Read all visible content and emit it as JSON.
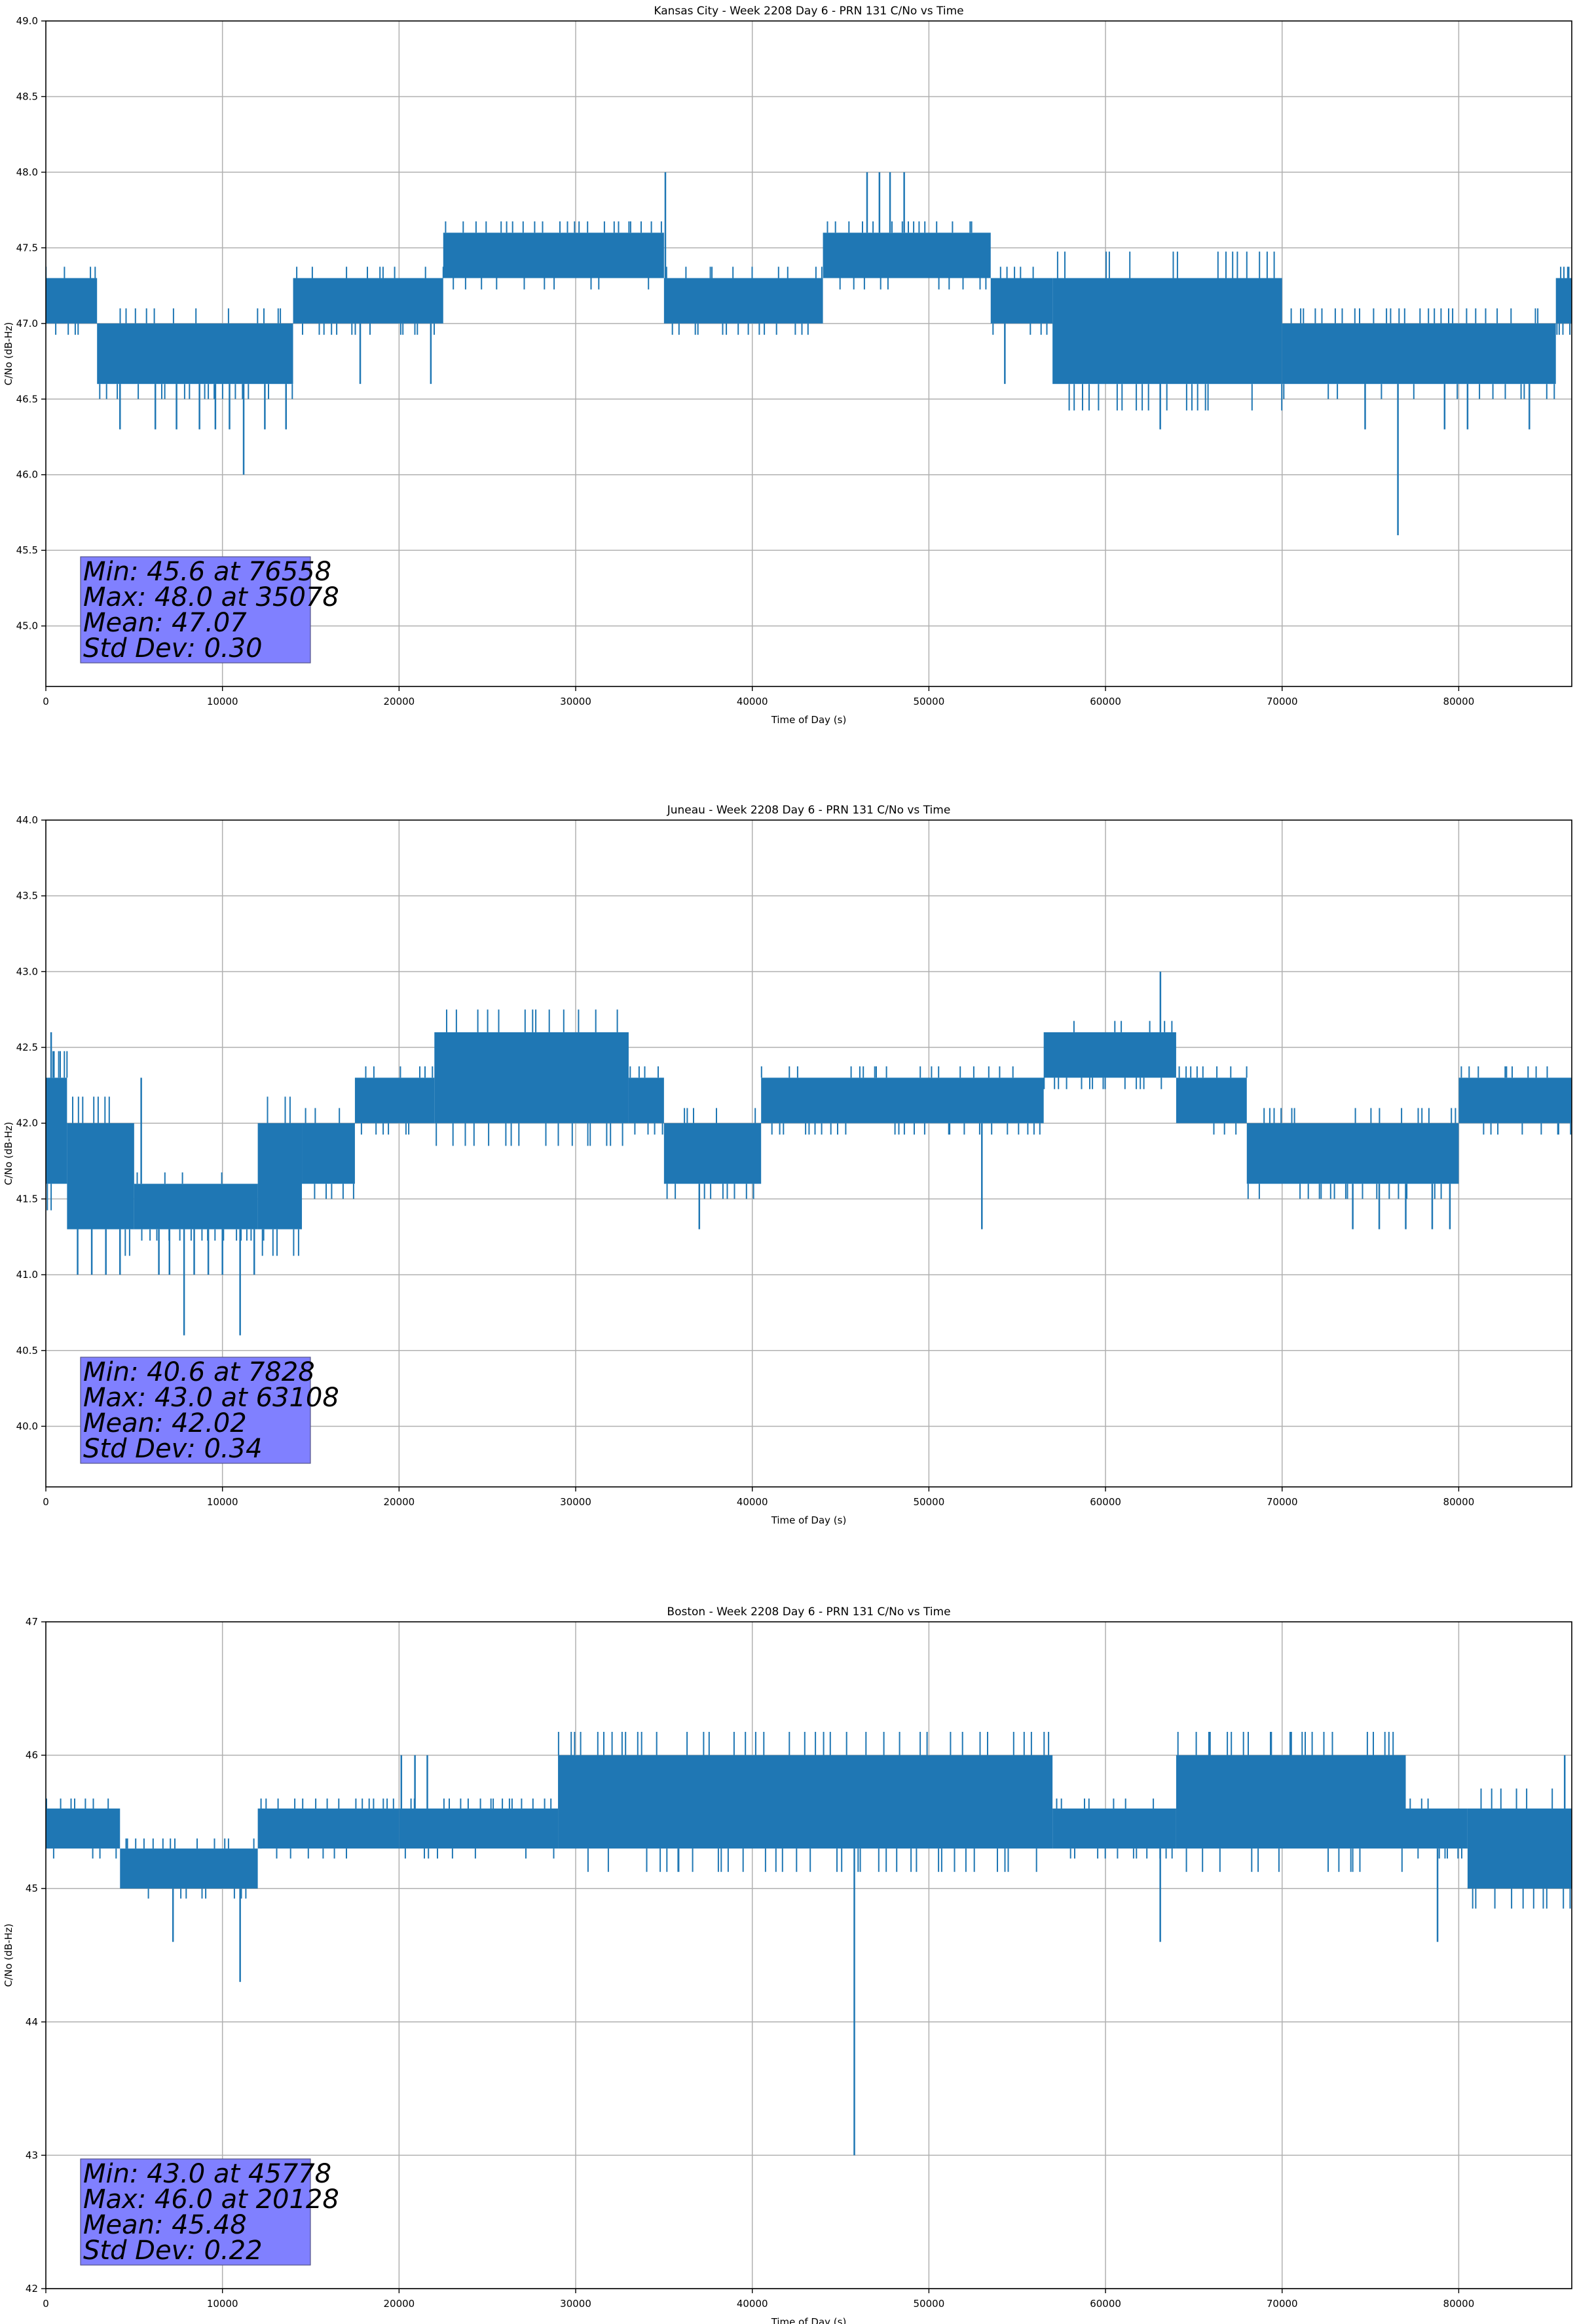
{
  "chart_data": [
    {
      "type": "line",
      "title": "Kansas City - Week 2208 Day 6 - PRN 131 C/No vs Time",
      "xlabel": "Time of Day (s)",
      "ylabel": "C/No (dB-Hz)",
      "xlim": [
        0,
        86400
      ],
      "ylim": [
        44.6,
        49.0
      ],
      "xticks": [
        0,
        10000,
        20000,
        30000,
        40000,
        50000,
        60000,
        70000,
        80000
      ],
      "yticks": [
        45.0,
        45.5,
        46.0,
        46.5,
        47.0,
        47.5,
        48.0,
        48.5,
        49.0
      ],
      "ytick_decimals": 1,
      "grid": true,
      "color": "#1f77b4",
      "stats": [
        "Min: 45.6 at 76558",
        "Max: 48.0 at 35078",
        "Mean: 47.07",
        "Std Dev: 0.30"
      ],
      "spans": [
        [
          0,
          2900,
          47.0,
          47.3
        ],
        [
          2900,
          14000,
          46.6,
          47.0
        ],
        [
          14000,
          22500,
          47.0,
          47.3
        ],
        [
          22500,
          35000,
          47.3,
          47.6
        ],
        [
          35000,
          44000,
          47.0,
          47.3
        ],
        [
          44000,
          53500,
          47.3,
          47.6
        ],
        [
          53500,
          57000,
          47.0,
          47.3
        ],
        [
          57000,
          70000,
          46.6,
          47.3
        ],
        [
          70000,
          85500,
          46.6,
          47.0
        ],
        [
          85500,
          86400,
          47.0,
          47.3
        ]
      ],
      "spikes": [
        [
          3000,
          46.6
        ],
        [
          4200,
          46.3
        ],
        [
          6200,
          46.3
        ],
        [
          7400,
          46.3
        ],
        [
          8700,
          46.3
        ],
        [
          9600,
          46.3
        ],
        [
          10400,
          46.3
        ],
        [
          11200,
          46.0
        ],
        [
          12400,
          46.3
        ],
        [
          13600,
          46.3
        ],
        [
          17800,
          46.6
        ],
        [
          21800,
          46.6
        ],
        [
          35078,
          48.0
        ],
        [
          46500,
          48.0
        ],
        [
          47200,
          48.0
        ],
        [
          47800,
          48.0
        ],
        [
          48600,
          48.0
        ],
        [
          54300,
          46.6
        ],
        [
          63100,
          46.3
        ],
        [
          74700,
          46.3
        ],
        [
          76558,
          45.6
        ],
        [
          79200,
          46.3
        ],
        [
          80500,
          46.3
        ],
        [
          84000,
          46.3
        ]
      ]
    },
    {
      "type": "line",
      "title": "Juneau - Week 2208 Day 6 - PRN 131 C/No vs Time",
      "xlabel": "Time of Day (s)",
      "ylabel": "C/No (dB-Hz)",
      "xlim": [
        0,
        86400
      ],
      "ylim": [
        39.6,
        44.0
      ],
      "xticks": [
        0,
        10000,
        20000,
        30000,
        40000,
        50000,
        60000,
        70000,
        80000
      ],
      "yticks": [
        40.0,
        40.5,
        41.0,
        41.5,
        42.0,
        42.5,
        43.0,
        43.5,
        44.0
      ],
      "ytick_decimals": 1,
      "grid": true,
      "color": "#1f77b4",
      "stats": [
        "Min: 40.6 at 7828",
        "Max: 43.0 at 63108",
        "Mean: 42.02",
        "Std Dev: 0.34"
      ],
      "spans": [
        [
          0,
          1200,
          41.6,
          42.3
        ],
        [
          1200,
          5000,
          41.3,
          42.0
        ],
        [
          5000,
          12000,
          41.3,
          41.6
        ],
        [
          12000,
          14500,
          41.3,
          42.0
        ],
        [
          14500,
          17500,
          41.6,
          42.0
        ],
        [
          17500,
          22000,
          42.0,
          42.3
        ],
        [
          22000,
          33000,
          42.0,
          42.6
        ],
        [
          33000,
          35000,
          42.0,
          42.3
        ],
        [
          35000,
          40500,
          41.6,
          42.0
        ],
        [
          40500,
          56500,
          42.0,
          42.3
        ],
        [
          56500,
          64000,
          42.3,
          42.6
        ],
        [
          64000,
          68000,
          42.0,
          42.3
        ],
        [
          68000,
          80000,
          41.6,
          42.0
        ],
        [
          80000,
          86400,
          42.0,
          42.3
        ]
      ],
      "spikes": [
        [
          300,
          42.6
        ],
        [
          1800,
          41.0
        ],
        [
          2600,
          41.0
        ],
        [
          3400,
          41.0
        ],
        [
          4200,
          41.0
        ],
        [
          5400,
          42.3
        ],
        [
          6400,
          41.0
        ],
        [
          7000,
          41.0
        ],
        [
          7828,
          40.6
        ],
        [
          8400,
          41.0
        ],
        [
          9200,
          41.0
        ],
        [
          10000,
          41.0
        ],
        [
          11000,
          40.6
        ],
        [
          11800,
          41.0
        ],
        [
          37000,
          41.3
        ],
        [
          53000,
          41.3
        ],
        [
          63108,
          43.0
        ],
        [
          74000,
          41.3
        ],
        [
          75500,
          41.3
        ],
        [
          77000,
          41.3
        ],
        [
          78500,
          41.3
        ],
        [
          79500,
          41.3
        ]
      ]
    },
    {
      "type": "line",
      "title": "Boston - Week 2208 Day 6 - PRN 131 C/No vs Time",
      "xlabel": "Time of Day (s)",
      "ylabel": "C/No (dB-Hz)",
      "xlim": [
        0,
        86400
      ],
      "ylim": [
        42,
        47
      ],
      "xticks": [
        0,
        10000,
        20000,
        30000,
        40000,
        50000,
        60000,
        70000,
        80000
      ],
      "yticks": [
        42,
        43,
        44,
        45,
        46,
        47
      ],
      "ytick_decimals": 0,
      "grid": true,
      "color": "#1f77b4",
      "stats": [
        "Min: 43.0 at 45778",
        "Max: 46.0 at 20128",
        "Mean: 45.48",
        "Std Dev: 0.22"
      ],
      "spans": [
        [
          0,
          4200,
          45.3,
          45.6
        ],
        [
          4200,
          12000,
          45.0,
          45.3
        ],
        [
          12000,
          20000,
          45.3,
          45.6
        ],
        [
          20000,
          29000,
          45.3,
          45.6
        ],
        [
          29000,
          57000,
          45.3,
          46.0
        ],
        [
          57000,
          64000,
          45.3,
          45.6
        ],
        [
          64000,
          77000,
          45.3,
          46.0
        ],
        [
          77000,
          80500,
          45.3,
          45.6
        ],
        [
          80500,
          86400,
          45.0,
          45.6
        ]
      ],
      "spikes": [
        [
          7200,
          44.6
        ],
        [
          11000,
          44.3
        ],
        [
          20128,
          46.0
        ],
        [
          20900,
          46.0
        ],
        [
          21600,
          46.0
        ],
        [
          45778,
          43.0
        ],
        [
          63100,
          44.6
        ],
        [
          78800,
          44.6
        ],
        [
          86000,
          46.0
        ]
      ]
    }
  ]
}
